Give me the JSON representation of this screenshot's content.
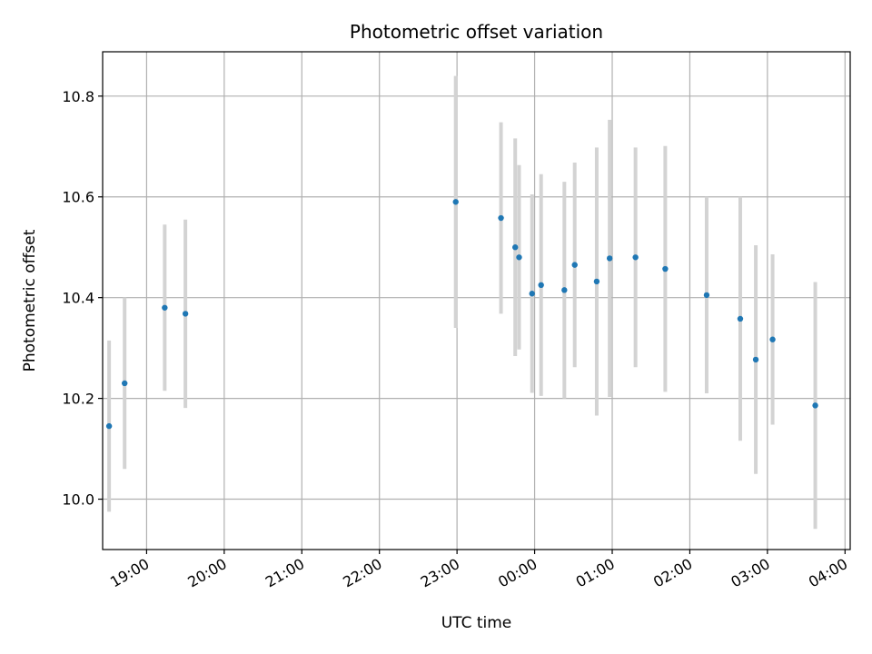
{
  "chart_data": {
    "type": "scatter",
    "title": "Photometric offset variation",
    "xlabel": "UTC time",
    "ylabel": "Photometric offset",
    "grid": true,
    "ylim": [
      9.9,
      10.888
    ],
    "xlim": [
      "18:26",
      "04:04"
    ],
    "y_ticks": [
      "10.0",
      "10.2",
      "10.4",
      "10.6",
      "10.8"
    ],
    "x_ticks": [
      "19:00",
      "20:00",
      "21:00",
      "22:00",
      "23:00",
      "00:00",
      "01:00",
      "02:00",
      "03:00",
      "04:00"
    ],
    "colors": {
      "point": "#1f77b4",
      "errorbar": "#d3d3d3",
      "grid": "#b0b0b0"
    },
    "series": [
      {
        "points": [
          {
            "x": "18:31",
            "y": 10.145,
            "err": 0.17
          },
          {
            "x": "18:43",
            "y": 10.23,
            "err": 0.17
          },
          {
            "x": "19:14",
            "y": 10.38,
            "err": 0.165
          },
          {
            "x": "19:30",
            "y": 10.368,
            "err": 0.187
          },
          {
            "x": "22:59",
            "y": 10.59,
            "err": 0.25
          },
          {
            "x": "23:34",
            "y": 10.558,
            "err": 0.19
          },
          {
            "x": "23:45",
            "y": 10.5,
            "err": 0.216
          },
          {
            "x": "23:48",
            "y": 10.48,
            "err": 0.183
          },
          {
            "x": "23:58",
            "y": 10.408,
            "err": 0.197
          },
          {
            "x": "00:05",
            "y": 10.425,
            "err": 0.22
          },
          {
            "x": "00:23",
            "y": 10.415,
            "err": 0.215
          },
          {
            "x": "00:31",
            "y": 10.465,
            "err": 0.203
          },
          {
            "x": "00:48",
            "y": 10.432,
            "err": 0.266
          },
          {
            "x": "00:58",
            "y": 10.478,
            "err": 0.275
          },
          {
            "x": "01:18",
            "y": 10.48,
            "err": 0.218
          },
          {
            "x": "01:41",
            "y": 10.457,
            "err": 0.244
          },
          {
            "x": "02:13",
            "y": 10.405,
            "err": 0.195
          },
          {
            "x": "02:39",
            "y": 10.358,
            "err": 0.242
          },
          {
            "x": "02:51",
            "y": 10.277,
            "err": 0.227
          },
          {
            "x": "03:04",
            "y": 10.317,
            "err": 0.169
          },
          {
            "x": "03:37",
            "y": 10.186,
            "err": 0.245
          }
        ]
      }
    ]
  }
}
